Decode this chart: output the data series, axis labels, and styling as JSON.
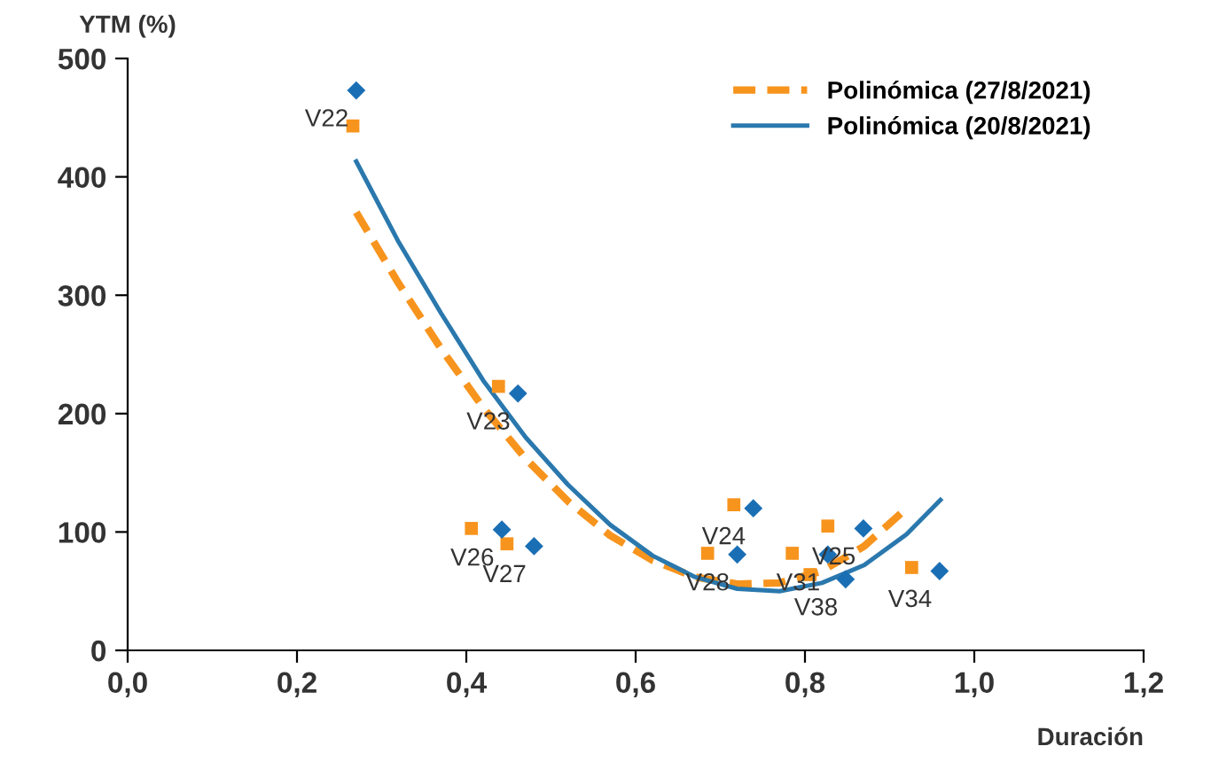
{
  "chart_data": {
    "type": "scatter",
    "xlabel": "Duración",
    "ylabel": "YTM (%)",
    "xlim": [
      0,
      1.2
    ],
    "ylim": [
      0,
      500
    ],
    "xticks": [
      {
        "value": 0,
        "label": "0,0"
      },
      {
        "value": 0.2,
        "label": "0,2"
      },
      {
        "value": 0.4,
        "label": "0,4"
      },
      {
        "value": 0.6,
        "label": "0,6"
      },
      {
        "value": 0.8,
        "label": "0,8"
      },
      {
        "value": 1,
        "label": "1,0"
      },
      {
        "value": 1.2,
        "label": "1,2"
      }
    ],
    "yticks": [
      0,
      100,
      200,
      300,
      400,
      500
    ],
    "grid": false,
    "legend": "top right",
    "series": [
      {
        "marker": "square",
        "color": "#f7941d",
        "x": [
          0.266,
          0.438,
          0.406,
          0.448,
          0.716,
          0.685,
          0.827,
          0.785,
          0.806,
          0.926
        ],
        "values": [
          443,
          223,
          103,
          90,
          123,
          82,
          105,
          82,
          64,
          70
        ]
      },
      {
        "marker": "diamond",
        "color": "#1a6fb4",
        "x": [
          0.27,
          0.461,
          0.442,
          0.48,
          0.739,
          0.72,
          0.827,
          0.848,
          0.869,
          0.959
        ],
        "values": [
          473,
          217,
          102,
          88,
          120,
          81,
          81,
          60,
          103,
          67
        ]
      },
      {
        "type": "line",
        "name": "Polinómica (27/8/2021)",
        "line_style": "dashed",
        "marker": "none",
        "color": "#f7941d",
        "x": [
          0.27,
          0.32,
          0.37,
          0.42,
          0.47,
          0.52,
          0.57,
          0.62,
          0.67,
          0.72,
          0.77,
          0.82,
          0.87,
          0.92
        ],
        "values": [
          370,
          310,
          255,
          205,
          162,
          126,
          97,
          76,
          62,
          56,
          57,
          67,
          88,
          120
        ]
      },
      {
        "type": "line",
        "name": "Polinómica (20/8/2021)",
        "line_style": "solid",
        "marker": "none",
        "color": "#2a78ad",
        "x": [
          0.27,
          0.32,
          0.37,
          0.42,
          0.47,
          0.52,
          0.57,
          0.62,
          0.67,
          0.72,
          0.77,
          0.82,
          0.87,
          0.92,
          0.96
        ],
        "values": [
          413,
          345,
          285,
          228,
          180,
          140,
          106,
          80,
          62,
          52,
          50,
          57,
          72,
          98,
          127
        ]
      }
    ],
    "annotations": [
      {
        "text": "V22",
        "x": 0.27,
        "y": 473
      },
      {
        "text": "V23",
        "x": 0.461,
        "y": 217
      },
      {
        "text": "V26",
        "x": 0.442,
        "y": 102
      },
      {
        "text": "V27",
        "x": 0.48,
        "y": 88
      },
      {
        "text": "V24",
        "x": 0.739,
        "y": 120
      },
      {
        "text": "V28",
        "x": 0.72,
        "y": 81
      },
      {
        "text": "V31",
        "x": 0.827,
        "y": 81
      },
      {
        "text": "V38",
        "x": 0.848,
        "y": 60
      },
      {
        "text": "V25",
        "x": 0.869,
        "y": 103
      },
      {
        "text": "V34",
        "x": 0.959,
        "y": 67
      }
    ]
  }
}
